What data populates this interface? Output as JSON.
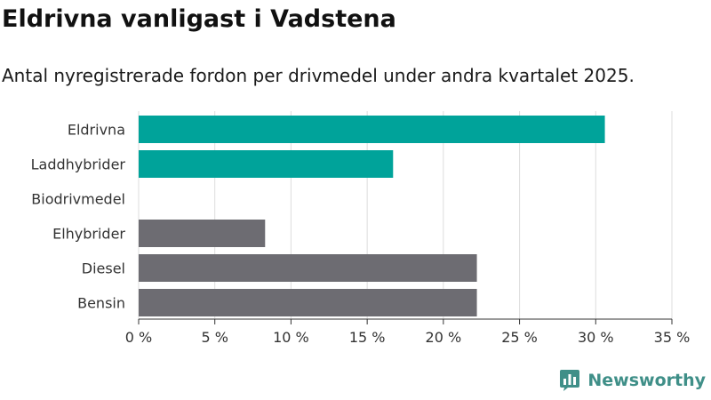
{
  "header": {
    "title": "Eldrivna vanligast i Vadstena",
    "subtitle": "Antal nyregistrerade fordon per drivmedel under andra kvartalet 2025."
  },
  "branding": {
    "name": "Newsworthy",
    "logo_icon": "bar-chart-speech-bubble-icon",
    "color": "#3f8f88"
  },
  "chart_data": {
    "type": "bar",
    "orientation": "horizontal",
    "categories": [
      "Eldrivna",
      "Laddhybrider",
      "Biodrivmedel",
      "Elhybrider",
      "Diesel",
      "Bensin"
    ],
    "values": [
      30.6,
      16.7,
      0,
      8.3,
      22.2,
      22.2
    ],
    "bar_colors": [
      "#00a39a",
      "#00a39a",
      "#00a39a",
      "#6d6c72",
      "#6d6c72",
      "#6d6c72"
    ],
    "xlim": [
      0,
      35
    ],
    "x_ticks": [
      0,
      5,
      10,
      15,
      20,
      25,
      30,
      35
    ],
    "x_tick_labels": [
      "0 %",
      "5 %",
      "10 %",
      "15 %",
      "20 %",
      "25 %",
      "30 %",
      "35 %"
    ],
    "grid": true,
    "title": "Eldrivna vanligast i Vadstena",
    "xlabel": "",
    "ylabel": ""
  }
}
